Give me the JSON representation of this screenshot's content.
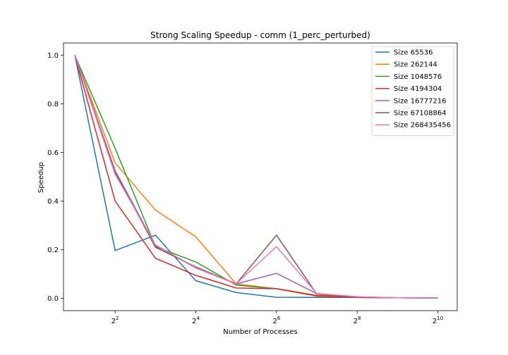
{
  "chart_data": {
    "type": "line",
    "title": "Strong Scaling Speedup - comm (1_perc_perturbed)",
    "xlabel": "Number of Processes",
    "ylabel": "Speedup",
    "xscale": "log2",
    "x": [
      2,
      4,
      8,
      16,
      32,
      64,
      128,
      256,
      512,
      1024
    ],
    "xlim_log2": [
      0.72,
      10.48
    ],
    "ylim": [
      -0.05,
      1.05
    ],
    "xticks": [
      {
        "value": 4,
        "base": "2",
        "exp": "2"
      },
      {
        "value": 16,
        "base": "2",
        "exp": "4"
      },
      {
        "value": 64,
        "base": "2",
        "exp": "6"
      },
      {
        "value": 256,
        "base": "2",
        "exp": "8"
      },
      {
        "value": 1024,
        "base": "2",
        "exp": "10"
      }
    ],
    "yticks": [
      {
        "value": 0.0,
        "label": "0.0"
      },
      {
        "value": 0.2,
        "label": "0.2"
      },
      {
        "value": 0.4,
        "label": "0.4"
      },
      {
        "value": 0.6,
        "label": "0.6"
      },
      {
        "value": 0.8,
        "label": "0.8"
      },
      {
        "value": 1.0,
        "label": "1.0"
      }
    ],
    "grid": false,
    "legend_position": "top-right",
    "series": [
      {
        "name": "Size 65536",
        "color": "#1f77b4",
        "values": [
          1.0,
          0.197,
          0.26,
          0.073,
          0.024,
          0.005,
          0.004,
          0.004,
          0.003,
          0.002
        ]
      },
      {
        "name": "Size 262144",
        "color": "#ff7f0e",
        "values": [
          1.0,
          0.557,
          0.363,
          0.253,
          0.06,
          0.04,
          0.009,
          0.005,
          0.003,
          0.002
        ]
      },
      {
        "name": "Size 1048576",
        "color": "#2ca02c",
        "values": [
          1.0,
          0.617,
          0.213,
          0.15,
          0.055,
          0.04,
          0.012,
          0.005,
          0.003,
          0.002
        ]
      },
      {
        "name": "Size 4194304",
        "color": "#d62728",
        "values": [
          1.0,
          0.4,
          0.165,
          0.095,
          0.043,
          0.04,
          0.012,
          0.004,
          0.003,
          0.002
        ]
      },
      {
        "name": "Size 16777216",
        "color": "#9467bd",
        "values": [
          1.0,
          0.525,
          0.218,
          0.125,
          0.06,
          0.103,
          0.02,
          0.007,
          0.003,
          0.002
        ]
      },
      {
        "name": "Size 67108864",
        "color": "#8c564b",
        "values": [
          1.0,
          0.52,
          0.21,
          0.13,
          0.06,
          0.26,
          0.018,
          0.006,
          0.003,
          0.002
        ]
      },
      {
        "name": "Size 268435456",
        "color": "#e377c2",
        "values": [
          1.0,
          0.51,
          0.22,
          0.127,
          0.06,
          0.213,
          0.02,
          0.007,
          0.003,
          0.002
        ]
      }
    ]
  }
}
